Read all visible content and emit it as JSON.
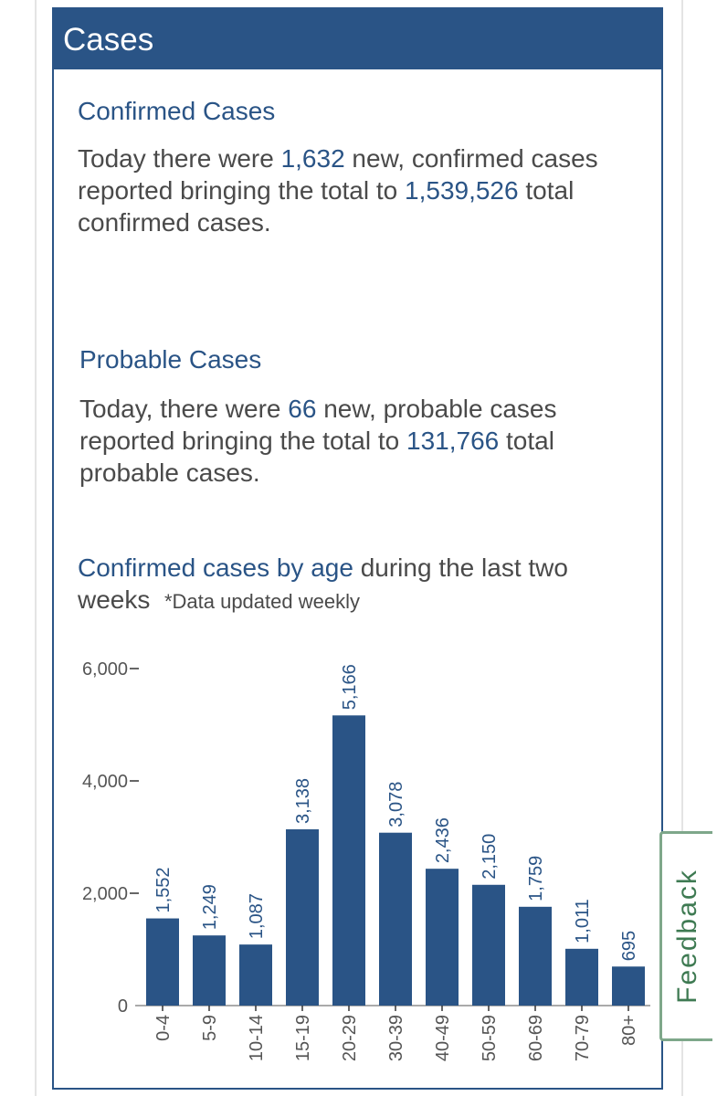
{
  "card": {
    "title": "Cases"
  },
  "confirmed": {
    "heading": "Confirmed Cases",
    "p1": "Today there were ",
    "new": "1,632",
    "p2": " new, confirmed cases reported bringing the total to ",
    "total": "1,539,526",
    "p3": " total confirmed cases."
  },
  "probable": {
    "heading": "Probable Cases",
    "p1": "Today, there were ",
    "new": "66",
    "p2": " new, probable cases reported bringing the total to ",
    "total": "131,766",
    "p3": " total probable cases."
  },
  "age_section": {
    "title_hl": "Confirmed cases by age",
    "title_rest": " during the last two weeks",
    "note": "*Data updated weekly"
  },
  "chart_data": {
    "type": "bar",
    "title": "Confirmed cases by age during the last two weeks",
    "categories": [
      "0-4",
      "5-9",
      "10-14",
      "15-19",
      "20-29",
      "30-39",
      "40-49",
      "50-59",
      "60-69",
      "70-79",
      "80+"
    ],
    "values": [
      1552,
      1249,
      1087,
      3138,
      5166,
      3078,
      2436,
      2150,
      1759,
      1011,
      695
    ],
    "value_labels": [
      "1,552",
      "1,249",
      "1,087",
      "3,138",
      "5,166",
      "3,078",
      "2,436",
      "2,150",
      "1,759",
      "1,011",
      "695"
    ],
    "yticks": [
      0,
      2000,
      4000,
      6000
    ],
    "ytick_labels": [
      "0",
      "2,000",
      "4,000",
      "6,000"
    ],
    "ylim": [
      0,
      6000
    ],
    "xlabel": "",
    "ylabel": "",
    "bar_color": "#2a5486"
  },
  "feedback": {
    "label": "Feedback"
  }
}
